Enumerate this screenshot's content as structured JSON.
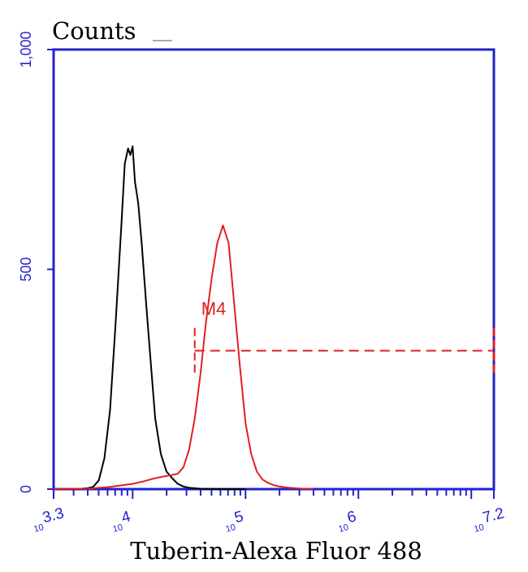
{
  "chart_data": {
    "type": "line",
    "title": "",
    "ylabel": "Counts",
    "xlabel": "Tuberin-Alexa Fluor 488",
    "x_scale": "log",
    "xlim": [
      3.3,
      7.2
    ],
    "ylim": [
      0,
      1000
    ],
    "y_ticks": [
      {
        "value": 0,
        "label": "0"
      },
      {
        "value": 500,
        "label": "500"
      },
      {
        "value": 1000,
        "label": "1,000"
      }
    ],
    "x_ticks": [
      {
        "exp": 3.3,
        "base": "10",
        "exponent": "3.3"
      },
      {
        "exp": 4,
        "base": "10",
        "exponent": "4"
      },
      {
        "exp": 5,
        "base": "10",
        "exponent": "5"
      },
      {
        "exp": 6,
        "base": "10",
        "exponent": "6"
      },
      {
        "exp": 7.2,
        "base": "10",
        "exponent": "7.2"
      }
    ],
    "grid": false,
    "legend": "none",
    "colors": {
      "axes": "#2222cc",
      "control": "#000000",
      "sample": "#e02020",
      "marker": "#e02020"
    },
    "series": [
      {
        "key": "control",
        "color": "#000000",
        "x": [
          3.3,
          3.5,
          3.6,
          3.65,
          3.7,
          3.75,
          3.8,
          3.85,
          3.9,
          3.93,
          3.96,
          3.98,
          4.0,
          4.02,
          4.05,
          4.08,
          4.12,
          4.16,
          4.2,
          4.25,
          4.3,
          4.35,
          4.4,
          4.45,
          4.5,
          4.55,
          4.6,
          4.8,
          5.0
        ],
        "y": [
          0,
          0,
          2,
          5,
          20,
          70,
          180,
          380,
          600,
          740,
          775,
          760,
          780,
          700,
          650,
          560,
          420,
          290,
          160,
          80,
          40,
          25,
          12,
          6,
          3,
          2,
          1,
          0,
          0
        ]
      },
      {
        "key": "sample",
        "color": "#e02020",
        "x": [
          3.3,
          3.6,
          3.8,
          4.0,
          4.1,
          4.2,
          4.3,
          4.4,
          4.45,
          4.5,
          4.55,
          4.6,
          4.65,
          4.7,
          4.75,
          4.8,
          4.85,
          4.9,
          4.95,
          5.0,
          5.05,
          5.1,
          5.15,
          5.2,
          5.25,
          5.3,
          5.35,
          5.4,
          5.5,
          5.6
        ],
        "y": [
          0,
          1,
          5,
          12,
          18,
          25,
          30,
          35,
          50,
          90,
          160,
          260,
          380,
          480,
          560,
          600,
          560,
          420,
          280,
          150,
          80,
          40,
          22,
          14,
          9,
          6,
          4,
          3,
          1,
          0
        ]
      }
    ],
    "marker": {
      "label": "M4",
      "x_start": 4.55,
      "x_end": 7.2,
      "y": 315
    }
  }
}
